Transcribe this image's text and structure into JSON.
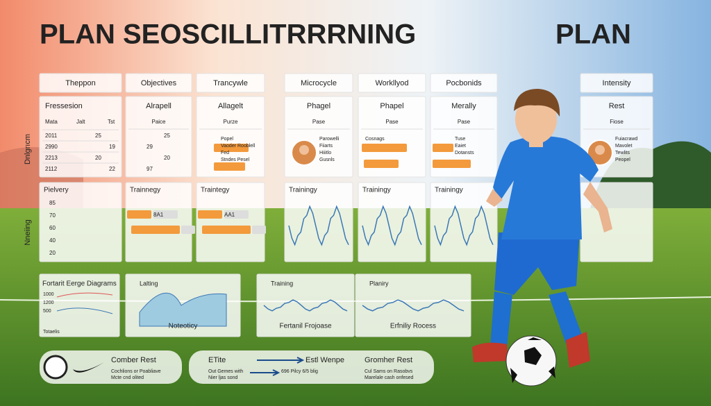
{
  "title": "PLAN SEOSCILLITRRRNING",
  "title_right": "PLAN",
  "side_labels": [
    "Dnlgrıcm",
    "Nneiing"
  ],
  "headers": [
    "Theppon",
    "Objectives",
    "Trancywle",
    "Microcycle",
    "Workllyod",
    "Pocbonids",
    "Intensity"
  ],
  "row2": [
    {
      "title": "Fressesion",
      "columns": [
        "Mata",
        "Jalt",
        "Tst"
      ],
      "lines": [
        "2011",
        "2990",
        "2213",
        "2112"
      ],
      "numbers": [
        "25",
        "19",
        "20",
        "22"
      ]
    },
    {
      "title": "Alrapell",
      "subtitle": "Paice",
      "numbers": [
        "25",
        "29",
        "20",
        "97"
      ]
    },
    {
      "title": "Allagelt",
      "subtitle": "Purze",
      "lines": [
        "Popel",
        "Vaoder Rooblell",
        "Fed",
        "Stndes Pesel"
      ]
    },
    {
      "title": "Phagel",
      "subtitle": "Pase",
      "lines": [
        "Parowelli",
        "Fiiarts",
        "Hiiitlo",
        "Gusnls"
      ]
    },
    {
      "title": "Phapel",
      "subtitle": "Pase",
      "lines": [
        "Cosnags"
      ]
    },
    {
      "title": "Merally",
      "subtitle": "Pase",
      "lines": [
        "Tuse",
        "Eaiet",
        "Dotansts"
      ]
    },
    {
      "title": "Rest",
      "subtitle": "Fiose",
      "lines": [
        "Fuiacrawd",
        "Mavolet",
        "Tewlits",
        "Peopel"
      ]
    }
  ],
  "row3": [
    {
      "title": "Pielvery",
      "numbers": [
        "85",
        "70",
        "60",
        "40",
        "20"
      ]
    },
    {
      "title": "Trainnegy",
      "lines": [
        "8A1"
      ]
    },
    {
      "title": "Traintegy",
      "lines": [
        "AA1"
      ]
    },
    {
      "title": "Trainingy"
    },
    {
      "title": "Trainingy"
    },
    {
      "title": "Trainingy"
    }
  ],
  "row4": [
    {
      "title": "Fortarit Eerge Diagrams",
      "numbers": [
        "1000",
        "1200",
        "500"
      ],
      "caption": "Totaelis"
    },
    {
      "title": "Lalting",
      "caption": "Noteoticy"
    },
    {
      "title": "Training",
      "caption": "Fertanil Frojoase"
    },
    {
      "title": "Planiry",
      "caption": "Erfniliy Rocess"
    }
  ],
  "bottom": [
    {
      "title": "Comber Rest",
      "lines": [
        "Cochlions or Poabliave",
        "Mcte cnd olited"
      ]
    },
    {
      "title": "ETite",
      "lines": [
        "Out Gemes with",
        "Nier ljas sond"
      ]
    },
    {
      "title": "Estl Wenpe",
      "lines": [
        "696 Pilcy 6/5 blig"
      ]
    },
    {
      "title": "Gromher Rest",
      "lines": [
        "Cul Sams on Rasobvs",
        "Marelale cash onfesed"
      ]
    }
  ]
}
